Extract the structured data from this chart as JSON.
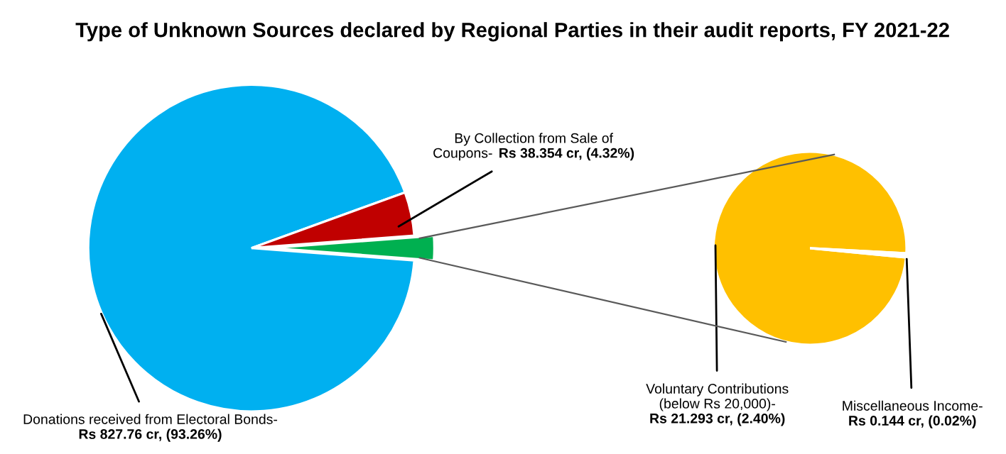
{
  "chart_data": [
    {
      "type": "pie",
      "title": "Type of Unknown Sources declared by Regional Parties in their audit reports, FY 2021-22",
      "categories": [
        "Donations received from Electoral Bonds-",
        "By Collection from Sale of\nCoupons-",
        null
      ],
      "values": [
        827.76,
        38.354,
        21.437
      ],
      "colors": [
        "#00b0f0",
        "#c00000",
        "#00b050"
      ],
      "value_labels": [
        "Rs 827.76 cr, (93.26%)",
        "Rs 38.354 cr, (4.32%)",
        null
      ]
    },
    {
      "type": "pie",
      "categories": [
        "Voluntary Contributions\n(below Rs 20,000)-",
        "Miscellaneous Income-"
      ],
      "values": [
        21.293,
        0.144
      ],
      "colors": [
        "#ffc000",
        "#ffffff"
      ],
      "value_labels": [
        "Rs 21.293 cr, (2.40%)",
        "Rs 0.144 cr, (0.02%)"
      ]
    }
  ]
}
